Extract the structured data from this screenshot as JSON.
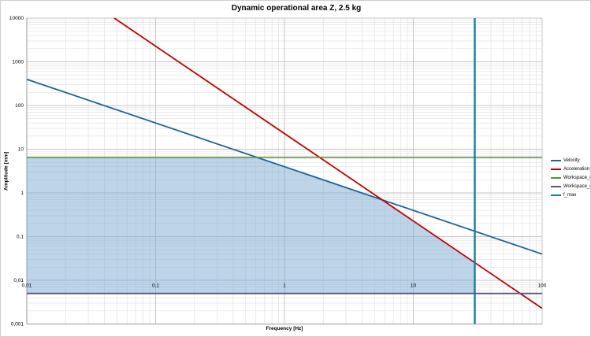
{
  "window": {
    "background": "#FFFFFF",
    "border_color": "#CFCFCF"
  },
  "chart_data": {
    "type": "line",
    "title": "Dynamic operational area Z, 2.5 kg",
    "xlabel": "Frequency [Hz]",
    "ylabel": "Amplitude [mm]",
    "x_scale": "log",
    "y_scale": "log",
    "xlim": [
      0.01,
      100
    ],
    "ylim": [
      0.001,
      10000
    ],
    "x_ticks": [
      {
        "value": 0.01,
        "label": "0,01"
      },
      {
        "value": 0.1,
        "label": "0,1"
      },
      {
        "value": 1,
        "label": "1"
      },
      {
        "value": 10,
        "label": "10"
      },
      {
        "value": 100,
        "label": "100"
      }
    ],
    "y_ticks": [
      {
        "value": 0.001,
        "label": "0,001"
      },
      {
        "value": 0.01,
        "label": "0,01"
      },
      {
        "value": 0.1,
        "label": "0,1"
      },
      {
        "value": 1,
        "label": "1"
      },
      {
        "value": 10,
        "label": "10"
      },
      {
        "value": 100,
        "label": "100"
      },
      {
        "value": 1000,
        "label": "1000"
      },
      {
        "value": 10000,
        "label": "10000"
      }
    ],
    "grid": {
      "minor": true,
      "major": true,
      "minor_color": "#E2E2E2",
      "major_color": "#C6C6C6",
      "axis_color": "#9A9A9A"
    },
    "legend_position": "right",
    "series": [
      {
        "name": "Velocity",
        "color": "#1E6399",
        "width": 1.8,
        "estimated_limit": "25 mm/s (slope -1)",
        "points": [
          [
            0.01,
            397.9
          ],
          [
            100,
            0.0398
          ]
        ]
      },
      {
        "name": "Acceleration",
        "color": "#C00000",
        "width": 1.8,
        "estimated_limit": "900 mm/s² (slope -2)",
        "points": [
          [
            0.047746,
            10000
          ],
          [
            100,
            0.00228
          ]
        ]
      },
      {
        "name": "Workspace_max",
        "color": "#5E9236",
        "width": 1.4,
        "estimated_limit": "6.5 mm",
        "points": [
          [
            0.01,
            6.5
          ],
          [
            100,
            6.5
          ]
        ]
      },
      {
        "name": "Workspace_min",
        "color": "#5B5289",
        "width": 1.8,
        "estimated_limit": "0.005 mm",
        "points": [
          [
            0.01,
            0.005
          ],
          [
            100,
            0.005
          ]
        ]
      },
      {
        "name": "f_max",
        "color": "#147FA0",
        "width": 2.4,
        "estimated_limit": "30 Hz",
        "points": [
          [
            30,
            0.001
          ],
          [
            30,
            10000
          ]
        ]
      }
    ],
    "operational_area": {
      "fill": "#7DAAD2",
      "opacity": 0.5,
      "vertices": [
        [
          0.01,
          6.5
        ],
        [
          0.61213,
          6.5
        ],
        [
          5.7296,
          0.69444
        ],
        [
          30,
          0.02533
        ],
        [
          30,
          0.005
        ],
        [
          0.01,
          0.005
        ]
      ]
    }
  }
}
